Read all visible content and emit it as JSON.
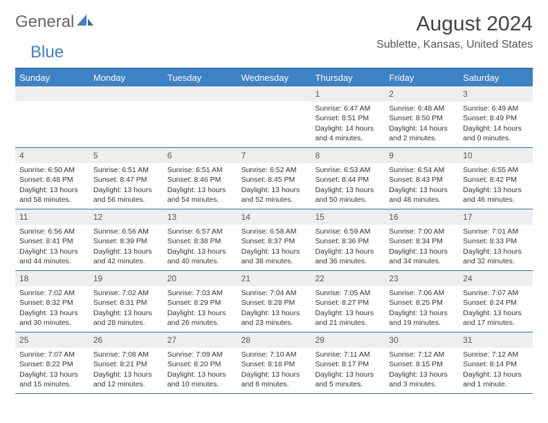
{
  "logo": {
    "text1": "General",
    "text2": "Blue",
    "shape_color": "#3d82c4"
  },
  "title": "August 2024",
  "location": "Sublette, Kansas, United States",
  "colors": {
    "header_bg": "#3d82c4",
    "header_text": "#ffffff",
    "border": "#2f6ea8",
    "daynum_bg": "#eeeeee",
    "text": "#333333"
  },
  "day_headers": [
    "Sunday",
    "Monday",
    "Tuesday",
    "Wednesday",
    "Thursday",
    "Friday",
    "Saturday"
  ],
  "weeks": [
    [
      {
        "day": "",
        "lines": []
      },
      {
        "day": "",
        "lines": []
      },
      {
        "day": "",
        "lines": []
      },
      {
        "day": "",
        "lines": []
      },
      {
        "day": "1",
        "lines": [
          "Sunrise: 6:47 AM",
          "Sunset: 8:51 PM",
          "Daylight: 14 hours",
          "and 4 minutes."
        ]
      },
      {
        "day": "2",
        "lines": [
          "Sunrise: 6:48 AM",
          "Sunset: 8:50 PM",
          "Daylight: 14 hours",
          "and 2 minutes."
        ]
      },
      {
        "day": "3",
        "lines": [
          "Sunrise: 6:49 AM",
          "Sunset: 8:49 PM",
          "Daylight: 14 hours",
          "and 0 minutes."
        ]
      }
    ],
    [
      {
        "day": "4",
        "lines": [
          "Sunrise: 6:50 AM",
          "Sunset: 8:48 PM",
          "Daylight: 13 hours",
          "and 58 minutes."
        ]
      },
      {
        "day": "5",
        "lines": [
          "Sunrise: 6:51 AM",
          "Sunset: 8:47 PM",
          "Daylight: 13 hours",
          "and 56 minutes."
        ]
      },
      {
        "day": "6",
        "lines": [
          "Sunrise: 6:51 AM",
          "Sunset: 8:46 PM",
          "Daylight: 13 hours",
          "and 54 minutes."
        ]
      },
      {
        "day": "7",
        "lines": [
          "Sunrise: 6:52 AM",
          "Sunset: 8:45 PM",
          "Daylight: 13 hours",
          "and 52 minutes."
        ]
      },
      {
        "day": "8",
        "lines": [
          "Sunrise: 6:53 AM",
          "Sunset: 8:44 PM",
          "Daylight: 13 hours",
          "and 50 minutes."
        ]
      },
      {
        "day": "9",
        "lines": [
          "Sunrise: 6:54 AM",
          "Sunset: 8:43 PM",
          "Daylight: 13 hours",
          "and 48 minutes."
        ]
      },
      {
        "day": "10",
        "lines": [
          "Sunrise: 6:55 AM",
          "Sunset: 8:42 PM",
          "Daylight: 13 hours",
          "and 46 minutes."
        ]
      }
    ],
    [
      {
        "day": "11",
        "lines": [
          "Sunrise: 6:56 AM",
          "Sunset: 8:41 PM",
          "Daylight: 13 hours",
          "and 44 minutes."
        ]
      },
      {
        "day": "12",
        "lines": [
          "Sunrise: 6:56 AM",
          "Sunset: 8:39 PM",
          "Daylight: 13 hours",
          "and 42 minutes."
        ]
      },
      {
        "day": "13",
        "lines": [
          "Sunrise: 6:57 AM",
          "Sunset: 8:38 PM",
          "Daylight: 13 hours",
          "and 40 minutes."
        ]
      },
      {
        "day": "14",
        "lines": [
          "Sunrise: 6:58 AM",
          "Sunset: 8:37 PM",
          "Daylight: 13 hours",
          "and 38 minutes."
        ]
      },
      {
        "day": "15",
        "lines": [
          "Sunrise: 6:59 AM",
          "Sunset: 8:36 PM",
          "Daylight: 13 hours",
          "and 36 minutes."
        ]
      },
      {
        "day": "16",
        "lines": [
          "Sunrise: 7:00 AM",
          "Sunset: 8:34 PM",
          "Daylight: 13 hours",
          "and 34 minutes."
        ]
      },
      {
        "day": "17",
        "lines": [
          "Sunrise: 7:01 AM",
          "Sunset: 8:33 PM",
          "Daylight: 13 hours",
          "and 32 minutes."
        ]
      }
    ],
    [
      {
        "day": "18",
        "lines": [
          "Sunrise: 7:02 AM",
          "Sunset: 8:32 PM",
          "Daylight: 13 hours",
          "and 30 minutes."
        ]
      },
      {
        "day": "19",
        "lines": [
          "Sunrise: 7:02 AM",
          "Sunset: 8:31 PM",
          "Daylight: 13 hours",
          "and 28 minutes."
        ]
      },
      {
        "day": "20",
        "lines": [
          "Sunrise: 7:03 AM",
          "Sunset: 8:29 PM",
          "Daylight: 13 hours",
          "and 26 minutes."
        ]
      },
      {
        "day": "21",
        "lines": [
          "Sunrise: 7:04 AM",
          "Sunset: 8:28 PM",
          "Daylight: 13 hours",
          "and 23 minutes."
        ]
      },
      {
        "day": "22",
        "lines": [
          "Sunrise: 7:05 AM",
          "Sunset: 8:27 PM",
          "Daylight: 13 hours",
          "and 21 minutes."
        ]
      },
      {
        "day": "23",
        "lines": [
          "Sunrise: 7:06 AM",
          "Sunset: 8:25 PM",
          "Daylight: 13 hours",
          "and 19 minutes."
        ]
      },
      {
        "day": "24",
        "lines": [
          "Sunrise: 7:07 AM",
          "Sunset: 8:24 PM",
          "Daylight: 13 hours",
          "and 17 minutes."
        ]
      }
    ],
    [
      {
        "day": "25",
        "lines": [
          "Sunrise: 7:07 AM",
          "Sunset: 8:22 PM",
          "Daylight: 13 hours",
          "and 15 minutes."
        ]
      },
      {
        "day": "26",
        "lines": [
          "Sunrise: 7:08 AM",
          "Sunset: 8:21 PM",
          "Daylight: 13 hours",
          "and 12 minutes."
        ]
      },
      {
        "day": "27",
        "lines": [
          "Sunrise: 7:09 AM",
          "Sunset: 8:20 PM",
          "Daylight: 13 hours",
          "and 10 minutes."
        ]
      },
      {
        "day": "28",
        "lines": [
          "Sunrise: 7:10 AM",
          "Sunset: 8:18 PM",
          "Daylight: 13 hours",
          "and 8 minutes."
        ]
      },
      {
        "day": "29",
        "lines": [
          "Sunrise: 7:11 AM",
          "Sunset: 8:17 PM",
          "Daylight: 13 hours",
          "and 5 minutes."
        ]
      },
      {
        "day": "30",
        "lines": [
          "Sunrise: 7:12 AM",
          "Sunset: 8:15 PM",
          "Daylight: 13 hours",
          "and 3 minutes."
        ]
      },
      {
        "day": "31",
        "lines": [
          "Sunrise: 7:12 AM",
          "Sunset: 8:14 PM",
          "Daylight: 13 hours",
          "and 1 minute."
        ]
      }
    ]
  ]
}
